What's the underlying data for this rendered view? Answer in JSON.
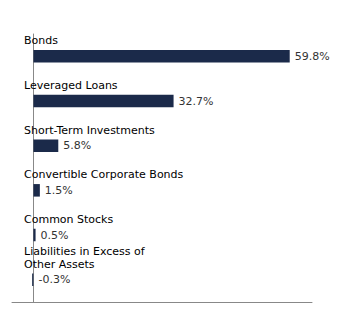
{
  "chart_data": {
    "type": "bar",
    "orientation": "horizontal",
    "categories": [
      "Bonds",
      "Leveraged Loans",
      "Short-Term Investments",
      "Convertible Corporate Bonds",
      "Common Stocks",
      "Liabilities in Excess of\nOther Assets"
    ],
    "values": [
      59.8,
      32.7,
      5.8,
      1.5,
      0.5,
      -0.3
    ],
    "value_labels": [
      "59.8%",
      "32.7%",
      "5.8%",
      "1.5%",
      "0.5%",
      "-0.3%"
    ],
    "color": "#1b2a4a",
    "xlim": [
      -5,
      65
    ],
    "data_labels": true,
    "grid": false,
    "tick_labels": false
  }
}
